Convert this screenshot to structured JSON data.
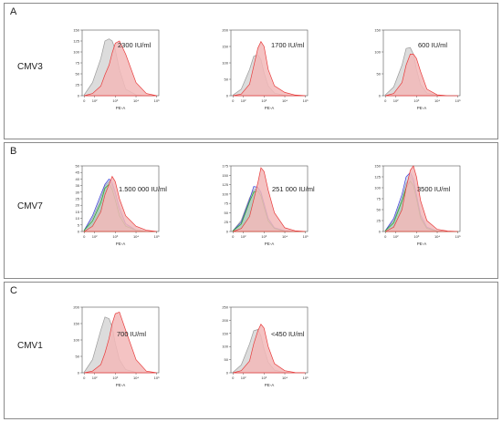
{
  "colors": {
    "sample_fill": "#f2b8b8",
    "sample_line": "#e83a3a",
    "control_fill": "#d6d6d6",
    "control_line": "#9a9a9a",
    "series_blue": "#3a3ad8",
    "series_green": "#22aa22",
    "panel_border": "#8a8a8a"
  },
  "panels": [
    {
      "letter": "A",
      "row_label": "CMV3",
      "plots": [
        {
          "concentration": "2300 IU/ml",
          "xlabel": "PE-A",
          "y_ticks": [
            "0",
            "25",
            "50",
            "75",
            "100",
            "125",
            "150"
          ],
          "ylim": [
            0,
            150
          ]
        },
        {
          "concentration": "1700 IU/ml",
          "xlabel": "PE-A",
          "y_ticks": [
            "0",
            "50",
            "100",
            "150",
            "200"
          ],
          "ylim": [
            0,
            200
          ]
        },
        {
          "concentration": "600 IU/ml",
          "xlabel": "PE-A",
          "y_ticks": [
            "0",
            "50",
            "100",
            "150"
          ],
          "ylim": [
            0,
            150
          ]
        }
      ]
    },
    {
      "letter": "B",
      "row_label": "CMV7",
      "plots": [
        {
          "concentration": "1.500 000 IU/ml",
          "xlabel": "PE-A",
          "y_ticks": [
            "0",
            "5",
            "10",
            "15",
            "20",
            "25",
            "30",
            "35",
            "40",
            "45",
            "50"
          ],
          "ylim": [
            0,
            50
          ]
        },
        {
          "concentration": "251 000 IU/ml",
          "xlabel": "PE-A",
          "y_ticks": [
            "0",
            "25",
            "50",
            "75",
            "100",
            "125",
            "150",
            "175"
          ],
          "ylim": [
            0,
            175
          ]
        },
        {
          "concentration": "3500 IU/ml",
          "xlabel": "PE-A",
          "y_ticks": [
            "0",
            "25",
            "50",
            "75",
            "100",
            "125",
            "150"
          ],
          "ylim": [
            0,
            150
          ]
        }
      ]
    },
    {
      "letter": "C",
      "row_label": "CMV1",
      "plots": [
        {
          "concentration": "700 IU/ml",
          "xlabel": "PE-A",
          "y_ticks": [
            "0",
            "50",
            "100",
            "150",
            "200"
          ],
          "ylim": [
            0,
            200
          ]
        },
        {
          "concentration": "<450 IU/ml",
          "xlabel": "PE-A",
          "y_ticks": [
            "0",
            "50",
            "100",
            "150",
            "200",
            "250"
          ],
          "ylim": [
            0,
            250
          ]
        }
      ]
    }
  ],
  "x_ticks": [
    "0",
    "10²",
    "10³",
    "10⁴",
    "10⁵"
  ],
  "chart_data": [
    {
      "type": "area",
      "row": "CMV3",
      "title": "2300 IU/ml",
      "xlabel": "PE-A",
      "ylabel": "",
      "x_scale": "log",
      "ylim": [
        0,
        150
      ],
      "x": [
        1.5,
        1.9,
        2.3,
        2.5,
        2.7,
        2.85,
        3.0,
        3.2,
        3.5,
        4.0,
        4.5,
        5.0
      ],
      "series": [
        {
          "values": [
            2,
            30,
            85,
            125,
            130,
            125,
            105,
            60,
            15,
            2,
            0,
            0
          ]
        },
        {
          "values": [
            0,
            5,
            22,
            48,
            70,
            98,
            120,
            125,
            95,
            30,
            5,
            0
          ]
        }
      ]
    },
    {
      "type": "area",
      "row": "CMV3",
      "title": "1700 IU/ml",
      "xlabel": "PE-A",
      "ylabel": "",
      "x_scale": "log",
      "ylim": [
        0,
        200
      ],
      "x": [
        1.5,
        1.9,
        2.3,
        2.5,
        2.7,
        2.85,
        3.0,
        3.2,
        3.5,
        4.0,
        4.5,
        5.0
      ],
      "series": [
        {
          "values": [
            2,
            20,
            80,
            120,
            125,
            110,
            70,
            30,
            8,
            1,
            0,
            0
          ]
        },
        {
          "values": [
            0,
            5,
            35,
            90,
            145,
            165,
            150,
            80,
            30,
            10,
            2,
            0
          ]
        }
      ]
    },
    {
      "type": "area",
      "row": "CMV3",
      "title": "600 IU/ml",
      "xlabel": "PE-A",
      "ylabel": "",
      "x_scale": "log",
      "ylim": [
        0,
        150
      ],
      "x": [
        1.5,
        1.9,
        2.3,
        2.5,
        2.7,
        2.85,
        3.0,
        3.2,
        3.5,
        4.0,
        4.5,
        5.0
      ],
      "series": [
        {
          "values": [
            2,
            20,
            70,
            108,
            110,
            95,
            60,
            25,
            6,
            1,
            0,
            0
          ]
        },
        {
          "values": [
            0,
            5,
            30,
            70,
            95,
            95,
            85,
            55,
            15,
            2,
            0,
            0
          ]
        }
      ]
    },
    {
      "type": "area",
      "row": "CMV7",
      "title": "1.500 000 IU/ml",
      "xlabel": "PE-A",
      "ylabel": "",
      "x_scale": "log",
      "ylim": [
        0,
        50
      ],
      "x": [
        1.5,
        1.9,
        2.3,
        2.5,
        2.7,
        2.85,
        3.0,
        3.2,
        3.5,
        4.0,
        4.5,
        5.0
      ],
      "series": [
        {
          "values": [
            1,
            10,
            25,
            35,
            38,
            35,
            28,
            15,
            5,
            1,
            0,
            0
          ]
        },
        {
          "values": [
            1,
            12,
            28,
            36,
            40,
            37,
            30,
            18,
            6,
            1,
            0,
            0
          ]
        },
        {
          "values": [
            1,
            8,
            22,
            33,
            36,
            32,
            24,
            12,
            4,
            1,
            0,
            0
          ]
        },
        {
          "values": [
            0,
            4,
            15,
            28,
            36,
            42,
            38,
            25,
            12,
            4,
            1,
            0
          ]
        }
      ]
    },
    {
      "type": "area",
      "row": "CMV7",
      "title": "251 000 IU/ml",
      "xlabel": "PE-A",
      "ylabel": "",
      "x_scale": "log",
      "ylim": [
        0,
        175
      ],
      "x": [
        1.5,
        1.9,
        2.3,
        2.5,
        2.7,
        2.85,
        3.0,
        3.2,
        3.5,
        4.0,
        4.5,
        5.0
      ],
      "series": [
        {
          "values": [
            2,
            30,
            90,
            110,
            115,
            100,
            70,
            30,
            8,
            1,
            0,
            0
          ]
        },
        {
          "values": [
            2,
            25,
            85,
            120,
            118,
            105,
            75,
            35,
            10,
            2,
            0,
            0
          ]
        },
        {
          "values": [
            2,
            20,
            80,
            105,
            108,
            95,
            65,
            28,
            8,
            1,
            0,
            0
          ]
        },
        {
          "values": [
            0,
            8,
            40,
            85,
            130,
            170,
            160,
            110,
            50,
            10,
            2,
            0
          ]
        }
      ]
    },
    {
      "type": "area",
      "row": "CMV7",
      "title": "3500 IU/ml",
      "xlabel": "PE-A",
      "ylabel": "",
      "x_scale": "log",
      "ylim": [
        0,
        150
      ],
      "x": [
        1.5,
        1.9,
        2.3,
        2.5,
        2.7,
        2.85,
        3.0,
        3.2,
        3.5,
        4.0,
        4.5,
        5.0
      ],
      "series": [
        {
          "values": [
            2,
            25,
            75,
            110,
            125,
            115,
            80,
            35,
            8,
            1,
            0,
            0
          ]
        },
        {
          "values": [
            2,
            30,
            85,
            125,
            135,
            120,
            85,
            38,
            10,
            1,
            0,
            0
          ]
        },
        {
          "values": [
            2,
            20,
            70,
            100,
            115,
            105,
            75,
            30,
            7,
            1,
            0,
            0
          ]
        },
        {
          "values": [
            0,
            10,
            50,
            100,
            140,
            150,
            125,
            70,
            25,
            5,
            1,
            0
          ]
        }
      ]
    },
    {
      "type": "area",
      "row": "CMV1",
      "title": "700 IU/ml",
      "xlabel": "PE-A",
      "ylabel": "",
      "x_scale": "log",
      "ylim": [
        0,
        200
      ],
      "x": [
        1.5,
        1.9,
        2.3,
        2.5,
        2.7,
        2.85,
        3.0,
        3.2,
        3.5,
        4.0,
        4.5,
        5.0
      ],
      "series": [
        {
          "values": [
            2,
            40,
            130,
            170,
            165,
            140,
            90,
            40,
            10,
            1,
            0,
            0
          ]
        },
        {
          "values": [
            0,
            5,
            25,
            60,
            105,
            150,
            180,
            185,
            130,
            40,
            5,
            0
          ]
        }
      ]
    },
    {
      "type": "area",
      "row": "CMV1",
      "title": "<450 IU/ml",
      "xlabel": "PE-A",
      "ylabel": "",
      "x_scale": "log",
      "ylim": [
        0,
        250
      ],
      "x": [
        1.5,
        1.9,
        2.3,
        2.5,
        2.7,
        2.85,
        3.0,
        3.2,
        3.5,
        4.0,
        4.5,
        5.0
      ],
      "series": [
        {
          "values": [
            2,
            30,
            110,
            160,
            165,
            140,
            90,
            40,
            10,
            1,
            0,
            0
          ]
        },
        {
          "values": [
            0,
            8,
            45,
            110,
            160,
            185,
            170,
            100,
            35,
            8,
            1,
            0
          ]
        }
      ]
    }
  ]
}
